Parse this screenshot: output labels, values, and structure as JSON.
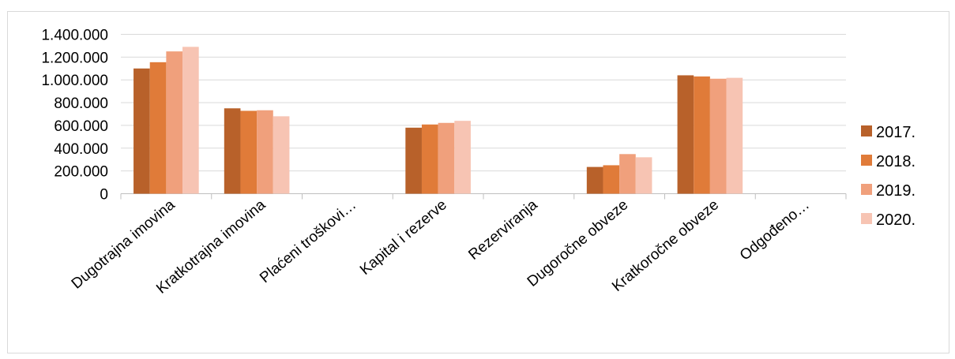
{
  "chart_data": {
    "type": "bar",
    "categories": [
      "Dugotrajna imovina",
      "Kratkotrajna imovina",
      "Plaćeni troškovi…",
      "Kapital i rezerve",
      "Rezerviranja",
      "Dugoročne obveze",
      "Kratkoročne obveze",
      "Odgođeno…"
    ],
    "series": [
      {
        "name": "2017.",
        "color": "#b8612a",
        "values": [
          1100000,
          750000,
          0,
          580000,
          0,
          235000,
          1040000,
          0
        ]
      },
      {
        "name": "2018.",
        "color": "#e07b39",
        "values": [
          1155000,
          728000,
          0,
          608000,
          0,
          250000,
          1030000,
          0
        ]
      },
      {
        "name": "2019.",
        "color": "#f0a07c",
        "values": [
          1250000,
          733000,
          0,
          622000,
          0,
          348000,
          1010000,
          0
        ]
      },
      {
        "name": "2020.",
        "color": "#f7c4b3",
        "values": [
          1290000,
          680000,
          0,
          640000,
          0,
          320000,
          1018000,
          0
        ]
      }
    ],
    "yticks": [
      "0",
      "200.000",
      "400.000",
      "600.000",
      "800.000",
      "1.000.000",
      "1.200.000",
      "1.400.000"
    ],
    "ylim": [
      0,
      1400000
    ],
    "grid": true,
    "legend_position": "right",
    "title": "",
    "xlabel": "",
    "ylabel": ""
  }
}
